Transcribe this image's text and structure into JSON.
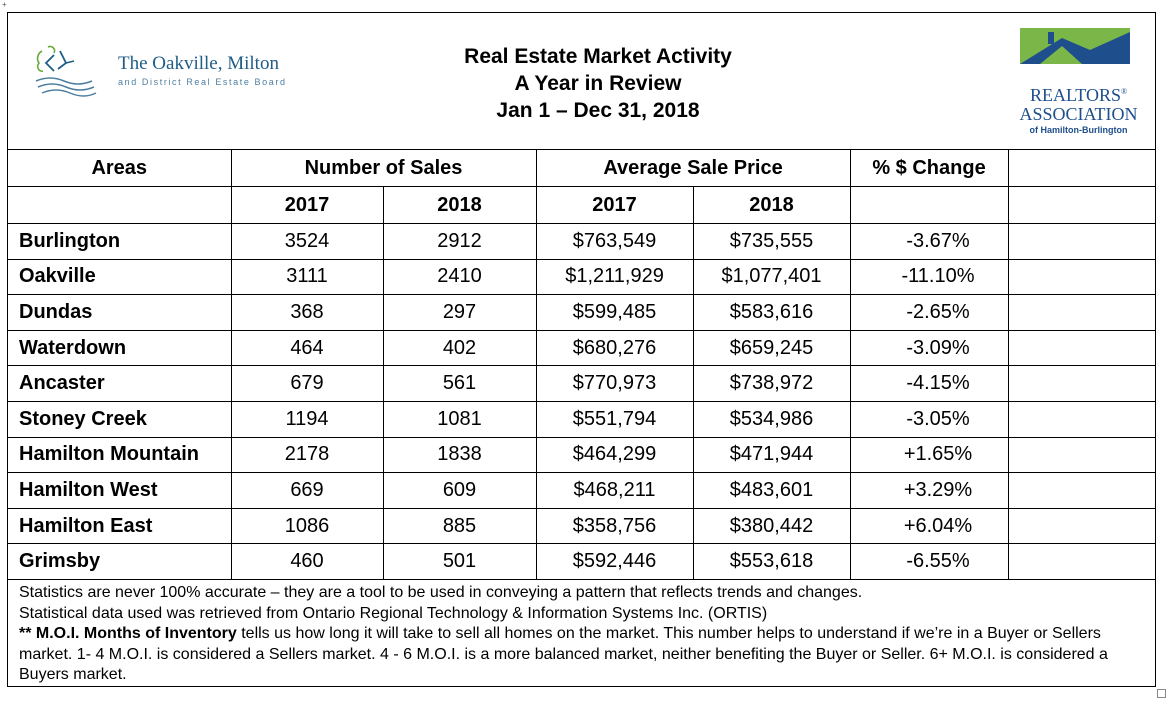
{
  "header": {
    "board_name": "The Oakville, Milton",
    "board_subtitle": "and District Real Estate Board",
    "title_lines": [
      "Real Estate Market Activity",
      "A Year in Review",
      "Jan 1 – Dec 31, 2018"
    ],
    "association": {
      "line1": "REALTORS",
      "registered": "®",
      "line2": "ASSOCIATION",
      "line3": "of Hamilton-Burlington",
      "colors": {
        "green": "#7ab648",
        "blue": "#1e4e8c"
      }
    }
  },
  "table": {
    "group_headers": {
      "areas": "Areas",
      "sales": "Number of Sales",
      "price": "Average Sale Price",
      "change": "% $ Change"
    },
    "year_headers": {
      "y1": "2017",
      "y2": "2018"
    },
    "rows": [
      {
        "area": "Burlington",
        "sales_2017": "3524",
        "sales_2018": "2912",
        "price_2017": "$763,549",
        "price_2018": "$735,555",
        "change": "-3.67%"
      },
      {
        "area": "Oakville",
        "sales_2017": "3111",
        "sales_2018": "2410",
        "price_2017": "$1,211,929",
        "price_2018": "$1,077,401",
        "change": "-11.10%"
      },
      {
        "area": "Dundas",
        "sales_2017": "368",
        "sales_2018": "297",
        "price_2017": "$599,485",
        "price_2018": "$583,616",
        "change": "-2.65%"
      },
      {
        "area": "Waterdown",
        "sales_2017": "464",
        "sales_2018": "402",
        "price_2017": "$680,276",
        "price_2018": "$659,245",
        "change": "-3.09%"
      },
      {
        "area": "Ancaster",
        "sales_2017": "679",
        "sales_2018": "561",
        "price_2017": "$770,973",
        "price_2018": "$738,972",
        "change": "-4.15%"
      },
      {
        "area": "Stoney Creek",
        "sales_2017": "1194",
        "sales_2018": "1081",
        "price_2017": "$551,794",
        "price_2018": "$534,986",
        "change": "-3.05%"
      },
      {
        "area": "Hamilton Mountain",
        "sales_2017": "2178",
        "sales_2018": "1838",
        "price_2017": "$464,299",
        "price_2018": "$471,944",
        "change": "+1.65%"
      },
      {
        "area": "Hamilton West",
        "sales_2017": "669",
        "sales_2018": "609",
        "price_2017": "$468,211",
        "price_2018": "$483,601",
        "change": "+3.29%"
      },
      {
        "area": "Hamilton East",
        "sales_2017": "1086",
        "sales_2018": "885",
        "price_2017": "$358,756",
        "price_2018": "$380,442",
        "change": "+6.04%"
      },
      {
        "area": "Grimsby",
        "sales_2017": "460",
        "sales_2018": "501",
        "price_2017": "$592,446",
        "price_2018": "$553,618",
        "change": "-6.55%"
      }
    ]
  },
  "footnotes": {
    "line1": "Statistics are never 100% accurate – they are a tool to be used in conveying a pattern that reflects trends and changes.",
    "line2": "Statistical data used was retrieved from Ontario Regional Technology & Information Systems Inc. (ORTIS)",
    "moi_label": "** M.O.I. Months of Inventory",
    "moi_text": " tells us how long it will take to sell all homes on the market. This number helps to understand if we’re in a Buyer or Sellers market. 1- 4 M.O.I. is considered a Sellers market. 4 - 6 M.O.I. is a more balanced market, neither benefiting the Buyer or Seller. 6+ M.O.I. is considered a Buyers market."
  }
}
